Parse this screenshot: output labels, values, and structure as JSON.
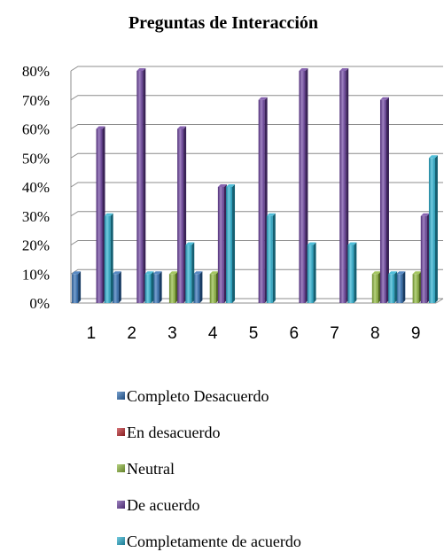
{
  "chart_data": {
    "type": "bar",
    "title": "Preguntas de Interacción",
    "xlabel": "",
    "ylabel": "",
    "categories": [
      "1",
      "2",
      "3",
      "4",
      "5",
      "6",
      "7",
      "8",
      "9"
    ],
    "y_tick_labels": [
      "0%",
      "10%",
      "20%",
      "30%",
      "40%",
      "50%",
      "60%",
      "70%",
      "80%"
    ],
    "ylim": [
      0,
      80
    ],
    "grid": true,
    "legend_position": "bottom",
    "series": [
      {
        "name": "Completo Desacuerdo",
        "color": "#2e6db4",
        "values": [
          10,
          10,
          10,
          10,
          0,
          0,
          0,
          0,
          10
        ]
      },
      {
        "name": "En desacuerdo",
        "color": "#c0282d",
        "values": [
          0,
          0,
          0,
          0,
          0,
          0,
          0,
          0,
          0
        ]
      },
      {
        "name": "Neutral",
        "color": "#8db83a",
        "values": [
          0,
          0,
          10,
          10,
          0,
          0,
          0,
          10,
          10
        ]
      },
      {
        "name": "De acuerdo",
        "color": "#6a3f9e",
        "values": [
          60,
          80,
          60,
          40,
          70,
          80,
          80,
          70,
          30
        ]
      },
      {
        "name": "Completamente de acuerdo",
        "color": "#27afd0",
        "values": [
          30,
          10,
          20,
          40,
          30,
          20,
          20,
          10,
          50
        ]
      }
    ]
  }
}
